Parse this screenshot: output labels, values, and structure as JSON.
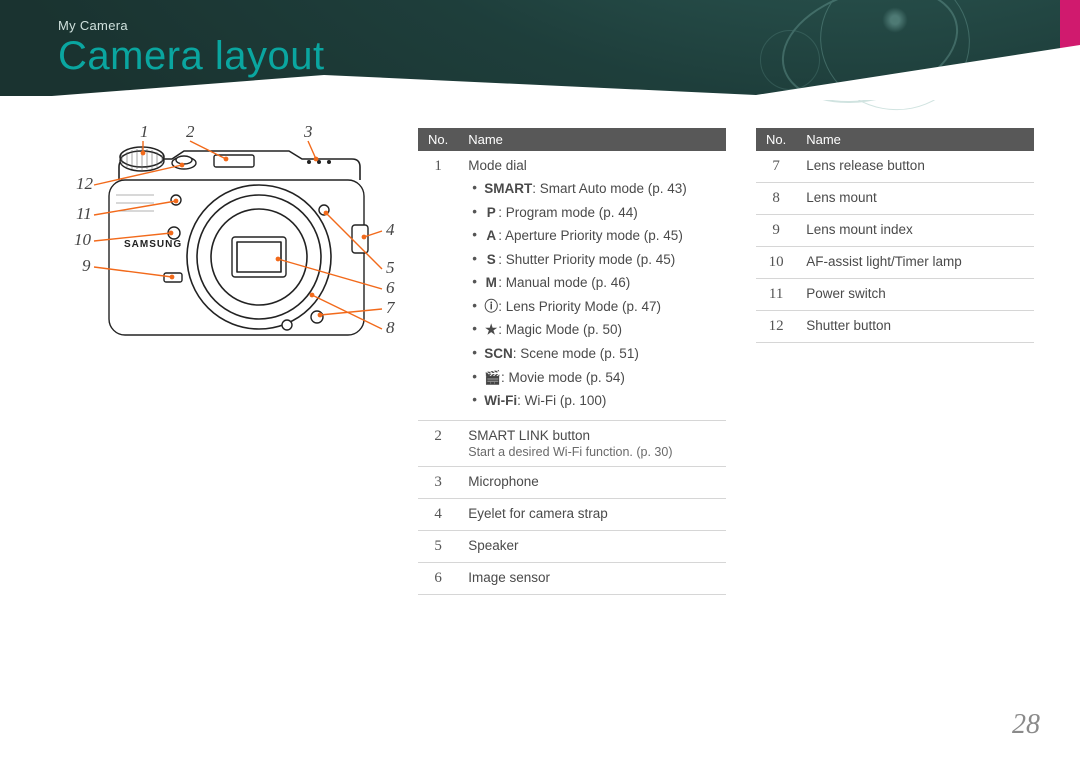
{
  "breadcrumb": "My Camera",
  "title": "Camera layout",
  "page_number": "28",
  "accent_color": "#0aa6a0",
  "leader_color": "#f26a1b",
  "pink_tab_color": "#d01a6e",
  "header_bg_stops": [
    "#2d5a55",
    "#1a3330"
  ],
  "callout_numbers": [
    "1",
    "2",
    "3",
    "4",
    "5",
    "6",
    "7",
    "8",
    "9",
    "10",
    "11",
    "12"
  ],
  "table1": {
    "columns": [
      "No.",
      "Name"
    ],
    "rows": [
      {
        "no": "1",
        "heading": "Mode dial",
        "modes": [
          {
            "icon": "SMART",
            "text": ": Smart Auto mode (p. 43)"
          },
          {
            "icon": "P",
            "text": ": Program mode (p. 44)"
          },
          {
            "icon": "A",
            "text": ": Aperture Priority mode (p. 45)"
          },
          {
            "icon": "S",
            "text": ": Shutter Priority mode (p. 45)"
          },
          {
            "icon": "M",
            "text": ": Manual mode (p. 46)"
          },
          {
            "icon": "ⓘ",
            "text": ": Lens Priority Mode (p. 47)"
          },
          {
            "icon": "★",
            "text": ": Magic Mode (p. 50)"
          },
          {
            "icon": "SCN",
            "text": ": Scene mode (p. 51)"
          },
          {
            "icon": "🎬",
            "text": ": Movie mode (p. 54)"
          },
          {
            "icon": "Wi-Fi",
            "text": ": Wi-Fi (p. 100)"
          }
        ]
      },
      {
        "no": "2",
        "heading": "SMART LINK button",
        "sub": "Start a desired Wi-Fi function. (p. 30)"
      },
      {
        "no": "3",
        "heading": "Microphone"
      },
      {
        "no": "4",
        "heading": "Eyelet for camera strap"
      },
      {
        "no": "5",
        "heading": "Speaker"
      },
      {
        "no": "6",
        "heading": "Image sensor"
      }
    ]
  },
  "table2": {
    "columns": [
      "No.",
      "Name"
    ],
    "rows": [
      {
        "no": "7",
        "heading": "Lens release button"
      },
      {
        "no": "8",
        "heading": "Lens mount"
      },
      {
        "no": "9",
        "heading": "Lens mount index"
      },
      {
        "no": "10",
        "heading": "AF-assist light/Timer lamp"
      },
      {
        "no": "11",
        "heading": "Power switch"
      },
      {
        "no": "12",
        "heading": "Shutter button"
      }
    ]
  }
}
